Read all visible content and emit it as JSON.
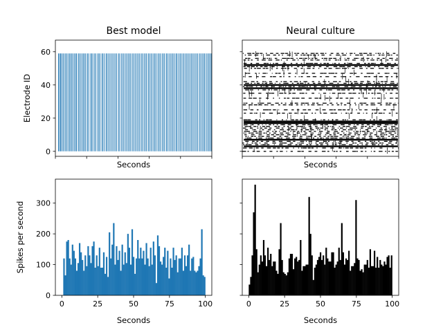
{
  "chart_data": [
    {
      "id": "raster_model",
      "type": "raster",
      "title": "Best model",
      "xlabel": "Seconds",
      "ylabel": "Electrode ID",
      "xlim": [
        0,
        100
      ],
      "ylim": [
        -3,
        67
      ],
      "yticks": [
        0,
        20,
        40,
        60
      ],
      "xtick_labels_visible": false,
      "color": "#1f77b4",
      "electrodes": [
        0,
        59
      ],
      "burst_times": [
        2.0,
        2.6,
        3.3,
        3.9,
        4.8,
        5.5,
        6.5,
        7.2,
        8.1,
        9.0,
        9.7,
        10.5,
        11.3,
        12.2,
        13.0,
        13.6,
        14.7,
        15.4,
        16.3,
        17.2,
        17.9,
        18.8,
        19.5,
        20.6,
        21.3,
        22.5,
        23.2,
        24.0,
        25.1,
        25.8,
        27.0,
        27.8,
        28.5,
        29.7,
        30.4,
        31.3,
        32.4,
        33.1,
        34.0,
        34.9,
        35.8,
        36.7,
        37.6,
        38.5,
        39.3,
        40.5,
        41.2,
        42.3,
        43.2,
        43.9,
        45.0,
        45.8,
        46.7,
        47.6,
        48.3,
        49.4,
        50.2,
        51.1,
        52.1,
        52.9,
        53.8,
        54.8,
        55.5,
        56.6,
        57.4,
        58.2,
        59.3,
        60.0,
        61.0,
        61.8,
        62.8,
        63.6,
        64.4,
        65.5,
        66.3,
        67.1,
        68.2,
        69.0,
        69.8,
        70.9,
        71.6,
        72.6,
        73.5,
        74.4,
        75.2,
        76.1,
        77.1,
        77.8,
        78.8,
        79.7,
        80.5,
        81.5,
        82.3,
        83.3,
        84.1,
        85.0,
        85.9,
        86.8,
        87.6,
        88.5,
        89.4,
        90.3,
        91.1,
        92.2,
        93.0,
        93.9,
        94.8,
        95.5,
        96.5,
        97.4,
        98.2,
        99.0,
        99.7
      ]
    },
    {
      "id": "raster_culture",
      "type": "raster",
      "title": "Neural culture",
      "xlabel": "Seconds",
      "xlim": [
        0,
        100
      ],
      "ylim": [
        -3,
        67
      ],
      "yticks": [
        0,
        20,
        40,
        60
      ],
      "xtick_labels_visible": false,
      "ytick_labels_visible": false,
      "color": "#000000",
      "active_electrodes": [
        0,
        2,
        3,
        4,
        5,
        6,
        7,
        8,
        9,
        10,
        11,
        12,
        13,
        14,
        15,
        16,
        17,
        18,
        19,
        23,
        25,
        28,
        29,
        32,
        35,
        37,
        38,
        39,
        40,
        41,
        42,
        45,
        47,
        50,
        51,
        52,
        53,
        55,
        56,
        58,
        59
      ],
      "dense_electrodes": [
        3,
        7,
        17,
        18,
        38,
        40,
        52
      ]
    },
    {
      "id": "hist_model",
      "type": "bar",
      "xlabel": "Seconds",
      "ylabel": "Spikes per second",
      "xlim": [
        -4.5,
        104.5
      ],
      "ylim": [
        0,
        378
      ],
      "xticks": [
        0,
        25,
        50,
        75,
        100
      ],
      "yticks": [
        0,
        100,
        200,
        300
      ],
      "color": "#1f77b4",
      "values": [
        0,
        120,
        65,
        175,
        180,
        120,
        100,
        165,
        145,
        120,
        80,
        105,
        170,
        140,
        115,
        80,
        130,
        95,
        160,
        130,
        105,
        160,
        175,
        90,
        130,
        95,
        155,
        90,
        90,
        140,
        70,
        125,
        60,
        205,
        120,
        165,
        235,
        100,
        160,
        115,
        145,
        80,
        165,
        100,
        140,
        105,
        200,
        155,
        100,
        215,
        125,
        70,
        120,
        180,
        120,
        155,
        120,
        145,
        100,
        170,
        120,
        95,
        155,
        100,
        175,
        130,
        40,
        195,
        160,
        110,
        100,
        125,
        155,
        90,
        145,
        55,
        120,
        90,
        155,
        115,
        130,
        75,
        120,
        120,
        155,
        80,
        130,
        95,
        130,
        165,
        80,
        120,
        125,
        80,
        75,
        80,
        95,
        120,
        215,
        65,
        60
      ]
    },
    {
      "id": "hist_culture",
      "type": "bar",
      "xlabel": "Seconds",
      "xlim": [
        -4.5,
        104.5
      ],
      "ylim": [
        0,
        378
      ],
      "xticks": [
        0,
        25,
        50,
        75,
        100
      ],
      "yticks": [
        0,
        100,
        200,
        300
      ],
      "ytick_labels_visible": false,
      "color": "#000000",
      "values": [
        35,
        60,
        130,
        270,
        360,
        150,
        75,
        100,
        130,
        110,
        180,
        130,
        95,
        155,
        115,
        135,
        95,
        110,
        110,
        80,
        70,
        150,
        235,
        115,
        75,
        70,
        65,
        75,
        120,
        135,
        135,
        85,
        120,
        125,
        110,
        115,
        180,
        80,
        95,
        95,
        100,
        100,
        320,
        200,
        130,
        50,
        90,
        100,
        115,
        125,
        140,
        115,
        130,
        100,
        155,
        120,
        110,
        110,
        140,
        140,
        90,
        100,
        110,
        155,
        115,
        235,
        140,
        100,
        120,
        115,
        145,
        80,
        95,
        95,
        105,
        310,
        120,
        115,
        80,
        85,
        75,
        100,
        100,
        115,
        90,
        150,
        95,
        95,
        145,
        90,
        125,
        90,
        115,
        100,
        95,
        110,
        100,
        125,
        130,
        90,
        130
      ]
    }
  ]
}
